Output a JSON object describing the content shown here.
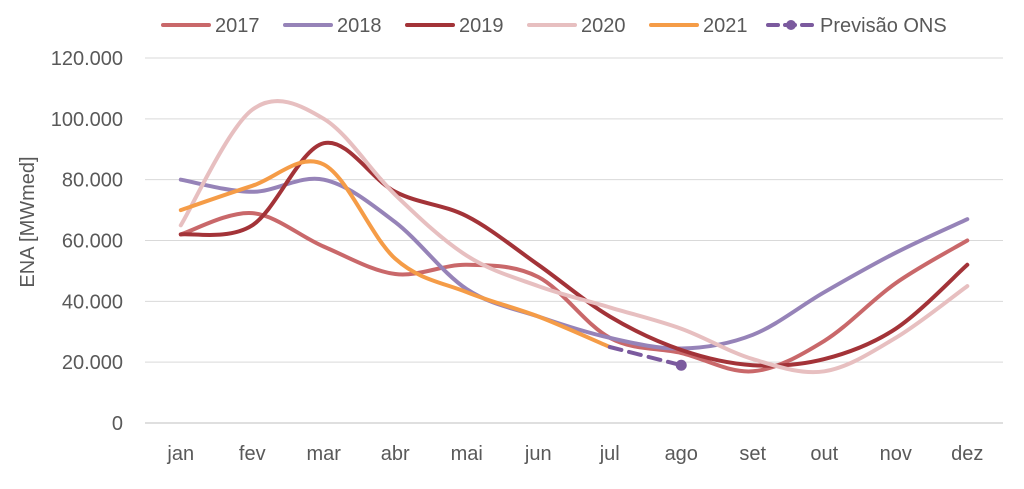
{
  "chart_data": {
    "type": "line",
    "ylabel": "ENA [MWmed]",
    "ylim": [
      0,
      120000
    ],
    "y_ticks": [
      0,
      20000,
      40000,
      60000,
      80000,
      100000,
      120000
    ],
    "y_tick_labels": [
      "0",
      "20.000",
      "40.000",
      "60.000",
      "80.000",
      "100.000",
      "120.000"
    ],
    "categories": [
      "jan",
      "fev",
      "mar",
      "abr",
      "mai",
      "jun",
      "jul",
      "ago",
      "set",
      "out",
      "nov",
      "dez"
    ],
    "grid": true,
    "legend_position": "top",
    "series": [
      {
        "name": "2017",
        "color": "#C9686A",
        "dashed": false,
        "marker": false,
        "values": [
          62000,
          69000,
          58000,
          49000,
          52000,
          48000,
          28000,
          23000,
          17000,
          27000,
          46000,
          60000
        ]
      },
      {
        "name": "2018",
        "color": "#9683B8",
        "dashed": false,
        "marker": false,
        "values": [
          80000,
          76000,
          80000,
          66000,
          44000,
          35000,
          28000,
          24500,
          29000,
          43000,
          56000,
          67000
        ]
      },
      {
        "name": "2019",
        "color": "#A33338",
        "dashed": false,
        "marker": false,
        "values": [
          62000,
          65000,
          92000,
          76000,
          68000,
          52000,
          35000,
          24000,
          19000,
          21000,
          31000,
          52000
        ]
      },
      {
        "name": "2020",
        "color": "#E7BFC0",
        "dashed": false,
        "marker": false,
        "values": [
          65000,
          103000,
          100000,
          75000,
          55000,
          45000,
          38000,
          31000,
          21000,
          17000,
          28000,
          45000
        ]
      },
      {
        "name": "2021",
        "color": "#F59C47",
        "dashed": false,
        "marker": false,
        "values": [
          70000,
          78000,
          85000,
          54000,
          43000,
          35000,
          25000,
          null,
          null,
          null,
          null,
          null
        ]
      },
      {
        "name": "Previsão ONS",
        "color": "#7B5A9E",
        "dashed": true,
        "marker": true,
        "values": [
          null,
          null,
          null,
          null,
          null,
          null,
          25000,
          19000,
          null,
          null,
          null,
          null
        ]
      }
    ]
  }
}
